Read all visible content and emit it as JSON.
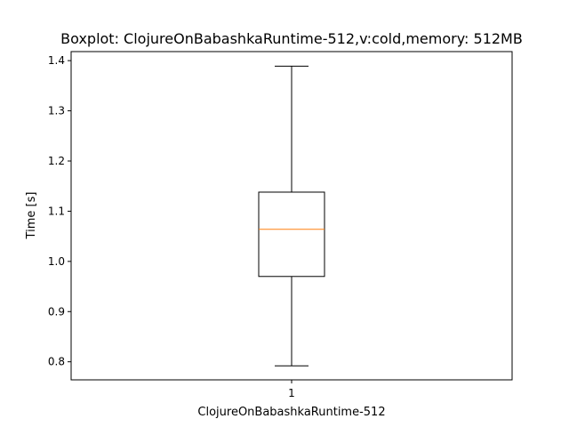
{
  "chart_data": {
    "type": "boxplot",
    "title": "Boxplot: ClojureOnBabashkaRuntime-512,v:cold,memory: 512MB",
    "xlabel": "ClojureOnBabashkaRuntime-512",
    "ylabel": "Time [s]",
    "categories": [
      "1"
    ],
    "ylim": [
      0.764,
      1.418
    ],
    "yticks": [
      0.8,
      0.9,
      1.0,
      1.1,
      1.2,
      1.3,
      1.4
    ],
    "ytick_labels": [
      "0.8",
      "0.9",
      "1.0",
      "1.1",
      "1.2",
      "1.3",
      "1.4"
    ],
    "boxes": [
      {
        "whisker_low": 0.792,
        "q1": 0.97,
        "median": 1.064,
        "q3": 1.138,
        "whisker_high": 1.389
      }
    ],
    "grid": false,
    "colors": {
      "box": "#000000",
      "median": "#ff7f0e",
      "background": "#ffffff"
    }
  }
}
